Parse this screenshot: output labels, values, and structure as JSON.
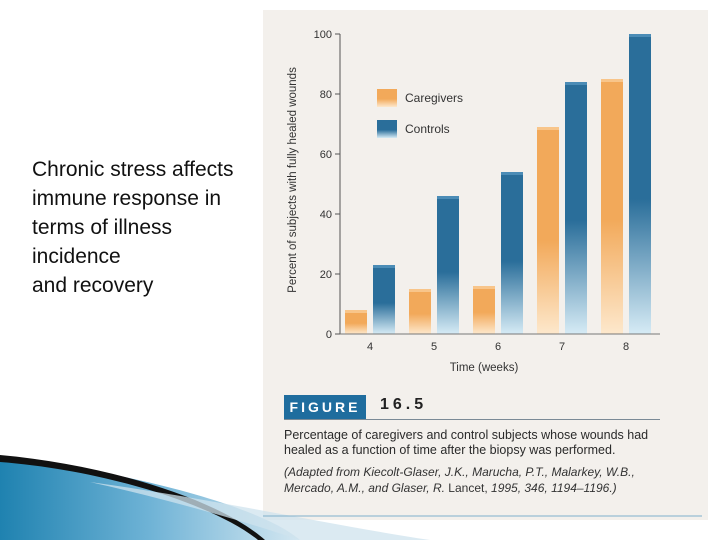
{
  "slide": {
    "body_text": "Chronic stress affects\nimmune response in\nterms of illness\nincidence\nand recovery"
  },
  "figure": {
    "label": "FIGURE",
    "number": "16.5",
    "caption": "Percentage of caregivers and control subjects whose wounds had healed as a function of time after the biopsy was performed.",
    "source_prefix": "(Adapted from Kiecolt-Glaser, J.K., Marucha, P.T., Malarkey, W.B., Mercado, A.M., and Glaser, R.",
    "source_journal": "Lancet,",
    "source_suffix": "1995, 346, 1194–1196.)"
  },
  "colors": {
    "caregivers": "#f2a95a",
    "controls": "#2a6e9a",
    "figure_label_bg": "#1f6d9e"
  },
  "chart_data": {
    "type": "bar",
    "title": "",
    "xlabel": "Time (weeks)",
    "ylabel": "Percent of subjects with fully healed wounds",
    "categories": [
      "4",
      "5",
      "6",
      "7",
      "8"
    ],
    "series": [
      {
        "name": "Caregivers",
        "values": [
          8,
          15,
          16,
          69,
          85
        ]
      },
      {
        "name": "Controls",
        "values": [
          23,
          46,
          54,
          84,
          100
        ]
      }
    ],
    "ylim": [
      0,
      100
    ],
    "yticks": [
      "0",
      "20",
      "40",
      "60",
      "80",
      "100"
    ],
    "legend_position": "top-left",
    "grid": false
  }
}
